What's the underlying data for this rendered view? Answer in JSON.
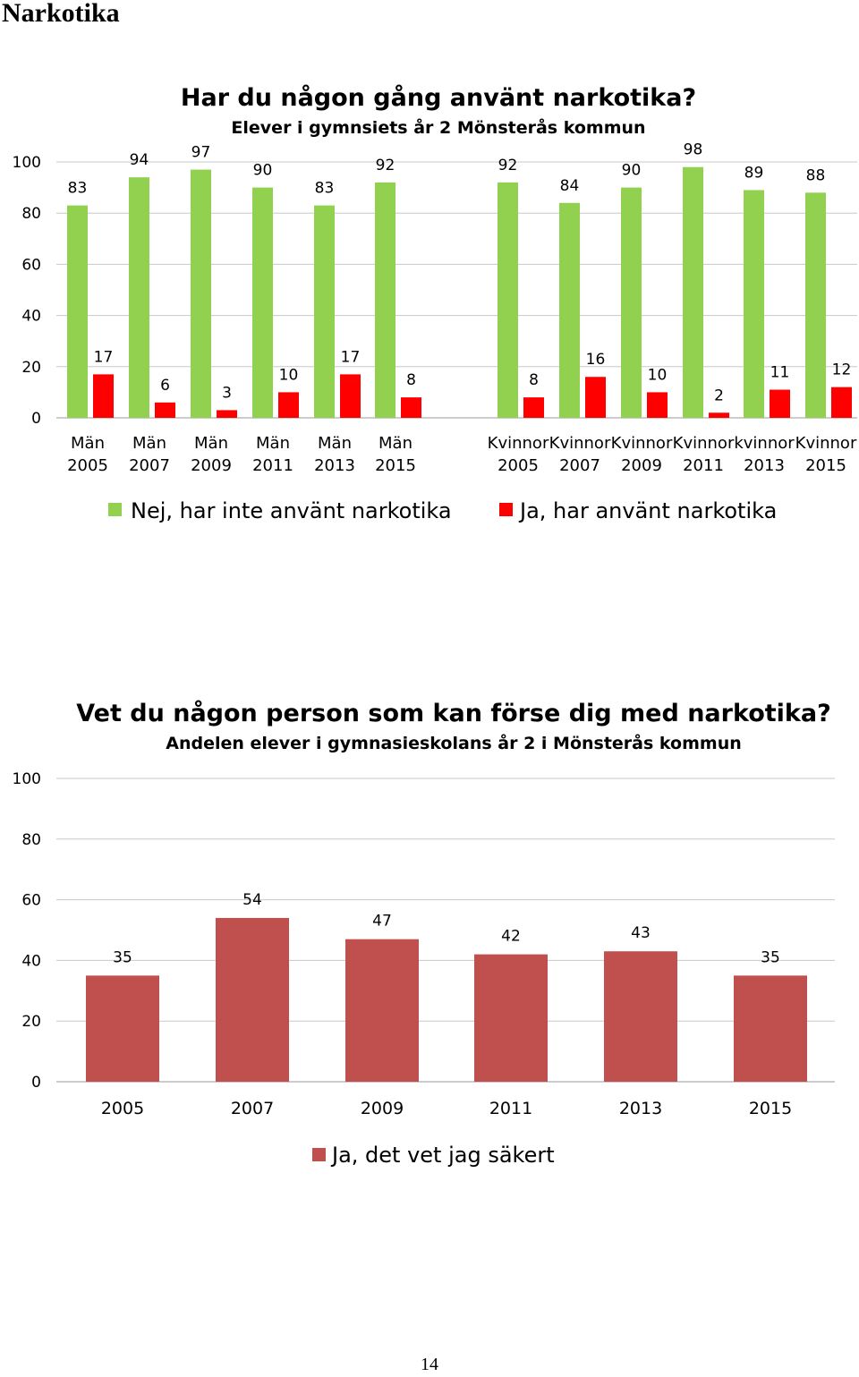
{
  "page": {
    "heading": "Narkotika",
    "page_number": "14"
  },
  "chart_data": [
    {
      "type": "bar",
      "title": "Har du någon gång använt narkotika?",
      "subtitle": "Elever i gymnsiets år 2 Mönsterås kommun",
      "categories": [
        [
          "Män",
          "2005"
        ],
        [
          "Män",
          "2007"
        ],
        [
          "Män",
          "2009"
        ],
        [
          "Män",
          "2011"
        ],
        [
          "Män",
          "2013"
        ],
        [
          "Män",
          "2015"
        ],
        [
          "Kvinnor",
          "2005"
        ],
        [
          "Kvinnor",
          "2007"
        ],
        [
          "Kvinnor",
          "2009"
        ],
        [
          "Kvinnor",
          "2011"
        ],
        [
          "kvinnor",
          "2013"
        ],
        [
          "Kvinnor",
          "2015"
        ]
      ],
      "series": [
        {
          "name": "Nej, har inte använt narkotika",
          "color": "#92D050",
          "values": [
            83,
            94,
            97,
            90,
            83,
            92,
            92,
            84,
            90,
            98,
            89,
            88
          ]
        },
        {
          "name": "Ja, har använt narkotika",
          "color": "#FF0000",
          "values": [
            17,
            6,
            3,
            10,
            17,
            8,
            8,
            16,
            10,
            2,
            11,
            12
          ]
        }
      ],
      "yticks": [
        "0",
        "20",
        "40",
        "60",
        "80",
        "100"
      ],
      "ylim": [
        0,
        100
      ],
      "grid": true,
      "legend": "bottom"
    },
    {
      "type": "bar",
      "title": "Vet du någon person som kan förse dig med narkotika?",
      "subtitle": "Andelen elever i gymnasieskolans år 2 i Mönsterås kommun",
      "categories": [
        "2005",
        "2007",
        "2009",
        "2011",
        "2013",
        "2015"
      ],
      "series": [
        {
          "name": "Ja, det vet jag säkert",
          "color": "#C0504D",
          "values": [
            35,
            54,
            47,
            42,
            43,
            35
          ]
        }
      ],
      "yticks": [
        "0",
        "20",
        "40",
        "60",
        "80",
        "100"
      ],
      "ylim": [
        0,
        100
      ],
      "grid": true,
      "legend": "bottom"
    }
  ]
}
